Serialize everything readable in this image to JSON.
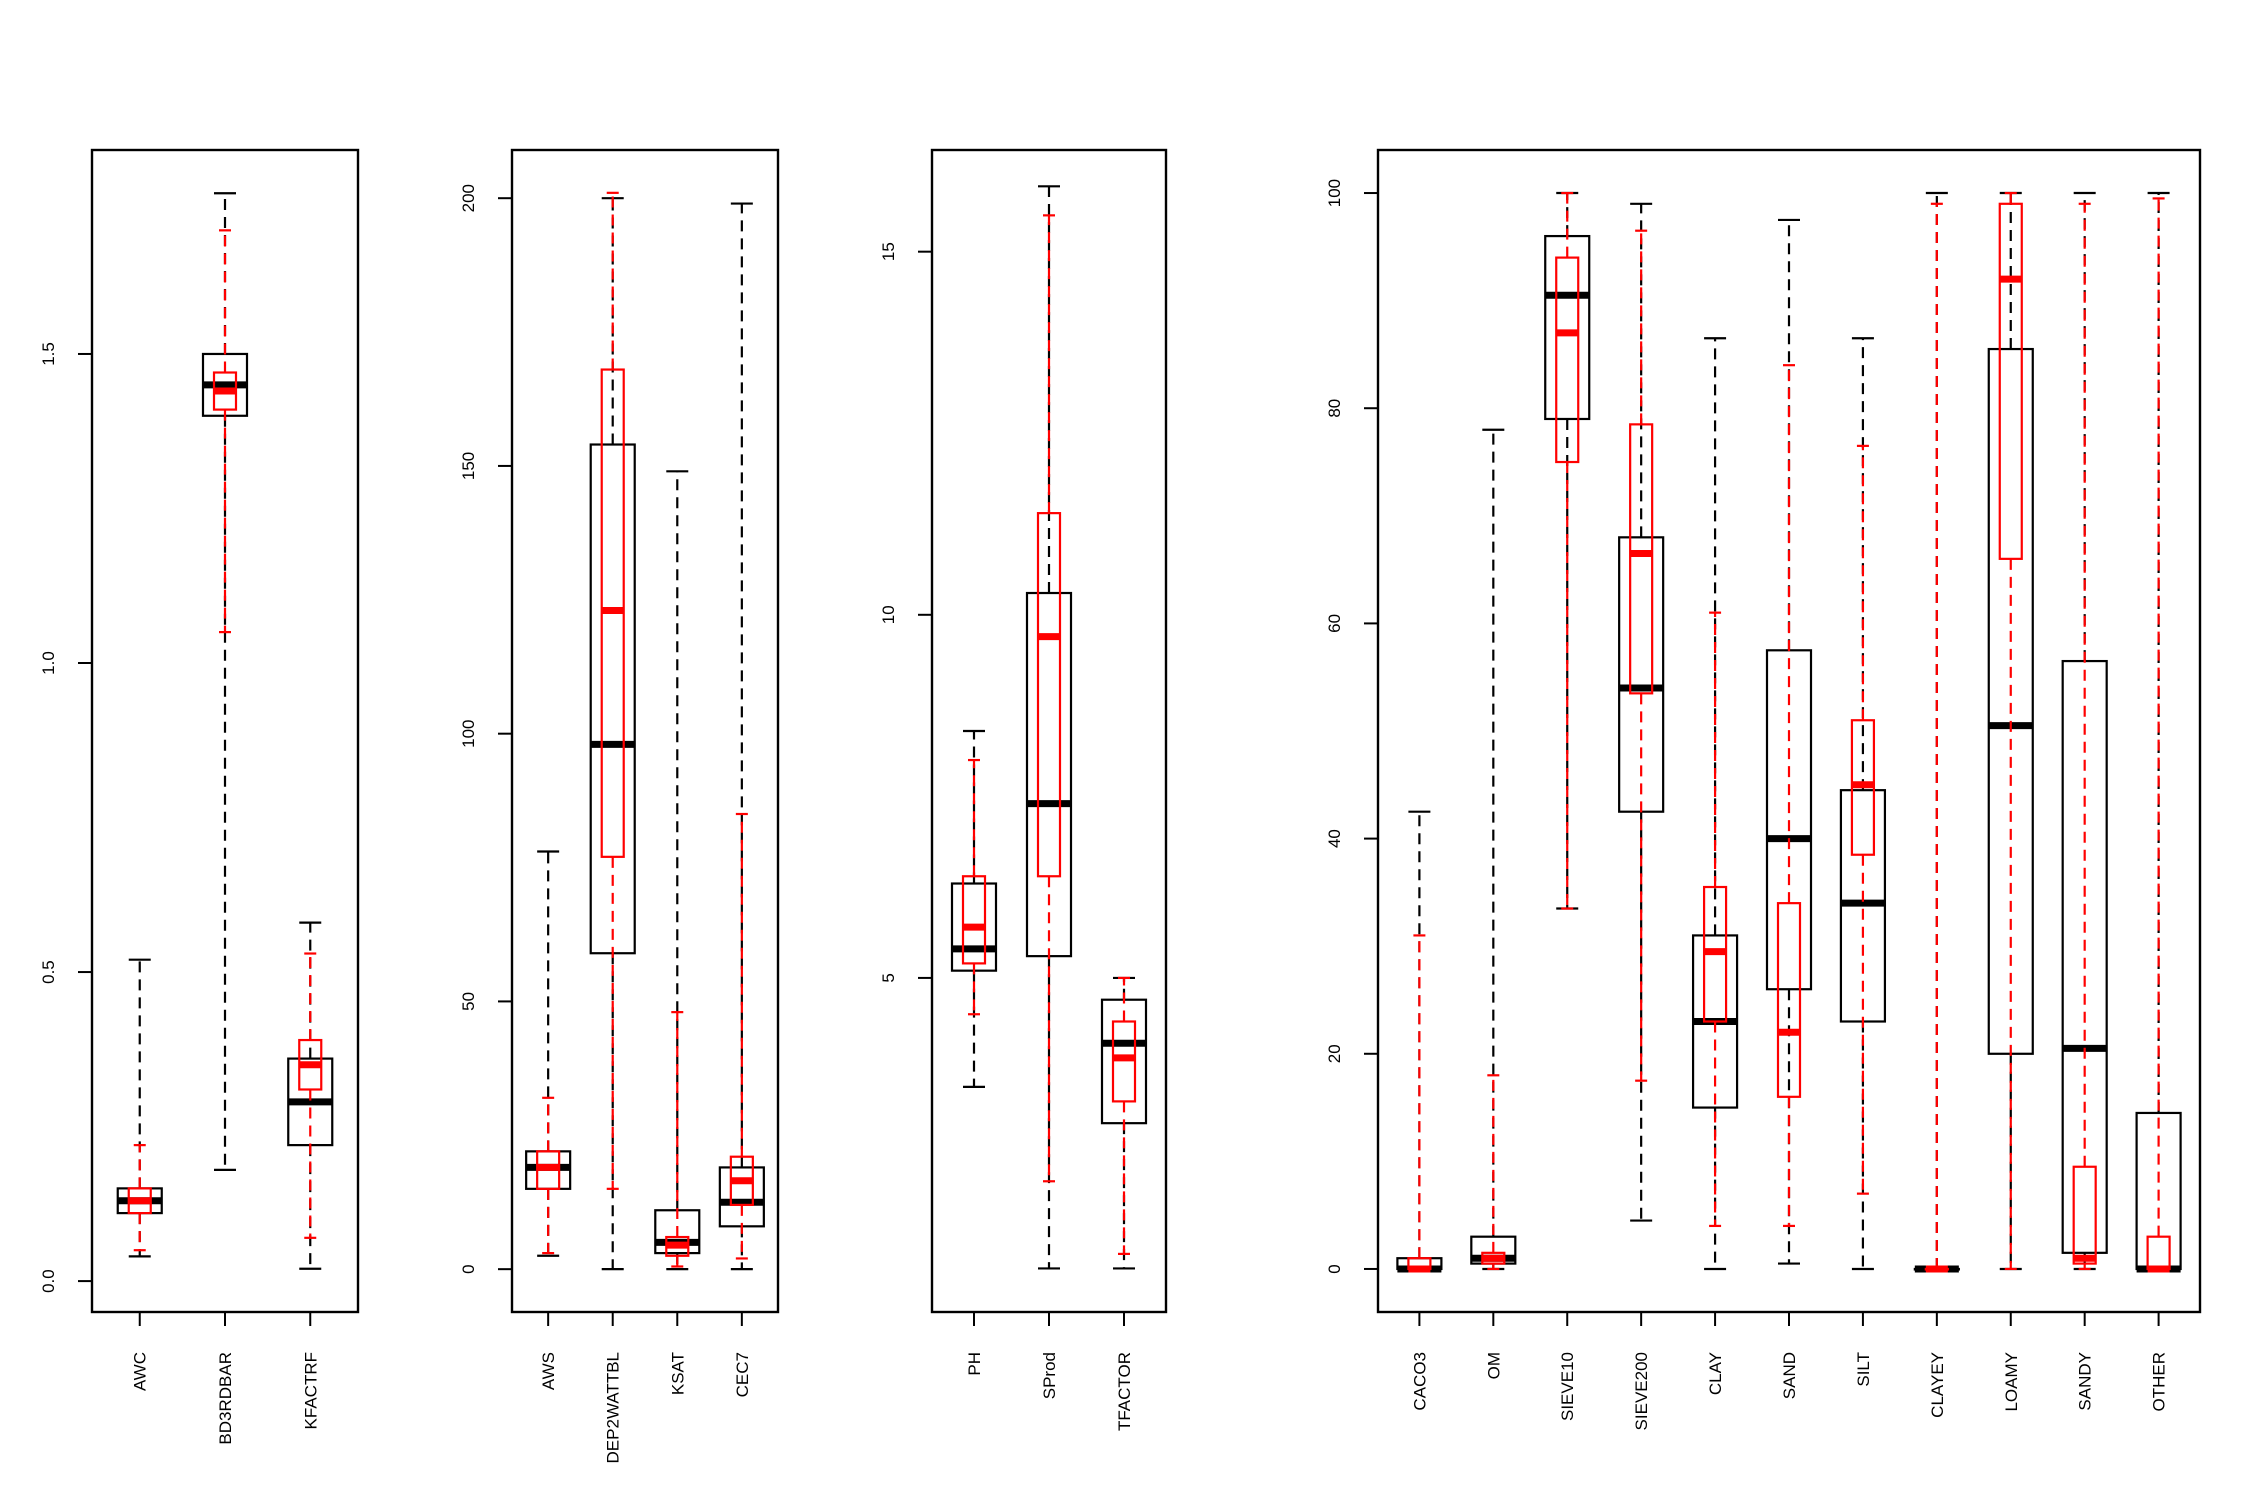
{
  "chart_data": [
    {
      "type": "boxplot",
      "ylim": [
        -0.05,
        1.83
      ],
      "yticks": [
        {
          "value": 0.0,
          "label": "0.0"
        },
        {
          "value": 0.5,
          "label": "0.5"
        },
        {
          "value": 1.0,
          "label": "1.0"
        },
        {
          "value": 1.5,
          "label": "1.5"
        }
      ],
      "categories": [
        "AWC",
        "BD3RDBAR",
        "KFACTRF"
      ],
      "series": [
        {
          "color": "#000000",
          "values": [
            {
              "min": 0.04,
              "q1": 0.11,
              "median": 0.13,
              "q3": 0.15,
              "max": 0.52
            },
            {
              "min": 0.18,
              "q1": 1.4,
              "median": 1.45,
              "q3": 1.5,
              "max": 1.76
            },
            {
              "min": 0.02,
              "q1": 0.22,
              "median": 0.29,
              "q3": 0.36,
              "max": 0.58
            }
          ]
        },
        {
          "color": "#ff0000",
          "values": [
            {
              "min": 0.05,
              "q1": 0.11,
              "median": 0.13,
              "q3": 0.15,
              "max": 0.22
            },
            {
              "min": 1.05,
              "q1": 1.41,
              "median": 1.44,
              "q3": 1.47,
              "max": 1.7
            },
            {
              "min": 0.07,
              "q1": 0.31,
              "median": 0.35,
              "q3": 0.39,
              "max": 0.53
            }
          ]
        }
      ]
    },
    {
      "type": "boxplot",
      "ylim": [
        -8,
        209
      ],
      "yticks": [
        {
          "value": 0,
          "label": "0"
        },
        {
          "value": 50,
          "label": "50"
        },
        {
          "value": 100,
          "label": "100"
        },
        {
          "value": 150,
          "label": "150"
        },
        {
          "value": 200,
          "label": "200"
        }
      ],
      "categories": [
        "AWS",
        "DEP2WATTBL",
        "KSAT",
        "CEC7"
      ],
      "series": [
        {
          "color": "#000000",
          "values": [
            {
              "min": 2.5,
              "q1": 15,
              "median": 19,
              "q3": 22,
              "max": 78
            },
            {
              "min": 0,
              "q1": 59,
              "median": 98,
              "q3": 154,
              "max": 200
            },
            {
              "min": 0,
              "q1": 3,
              "median": 5,
              "q3": 11,
              "max": 149
            },
            {
              "min": 0,
              "q1": 8,
              "median": 12.5,
              "q3": 19,
              "max": 199
            }
          ]
        },
        {
          "color": "#ff0000",
          "values": [
            {
              "min": 3,
              "q1": 15,
              "median": 19,
              "q3": 22,
              "max": 32
            },
            {
              "min": 15,
              "q1": 77,
              "median": 123,
              "q3": 168,
              "max": 201
            },
            {
              "min": 0.5,
              "q1": 2.5,
              "median": 4.5,
              "q3": 6,
              "max": 48
            },
            {
              "min": 2,
              "q1": 12,
              "median": 16.5,
              "q3": 21,
              "max": 85
            }
          ]
        }
      ]
    },
    {
      "type": "boxplot",
      "ylim": [
        0.4,
        16.4
      ],
      "yticks": [
        {
          "value": 5,
          "label": "5"
        },
        {
          "value": 10,
          "label": "10"
        },
        {
          "value": 15,
          "label": "15"
        }
      ],
      "categories": [
        "PH",
        "SProd",
        "TFACTOR"
      ],
      "series": [
        {
          "color": "#000000",
          "values": [
            {
              "min": 3.5,
              "q1": 5.1,
              "median": 5.4,
              "q3": 6.3,
              "max": 8.4
            },
            {
              "min": 1.0,
              "q1": 5.3,
              "median": 7.4,
              "q3": 10.3,
              "max": 15.9
            },
            {
              "min": 1.0,
              "q1": 3.0,
              "median": 4.1,
              "q3": 4.7,
              "max": 5.0
            }
          ]
        },
        {
          "color": "#ff0000",
          "values": [
            {
              "min": 4.5,
              "q1": 5.2,
              "median": 5.7,
              "q3": 6.4,
              "max": 8.0
            },
            {
              "min": 2.2,
              "q1": 6.4,
              "median": 9.7,
              "q3": 11.4,
              "max": 15.5
            },
            {
              "min": 1.2,
              "q1": 3.3,
              "median": 3.9,
              "q3": 4.4,
              "max": 5.0
            }
          ]
        }
      ]
    },
    {
      "type": "boxplot",
      "ylim": [
        -4,
        104
      ],
      "yticks": [
        {
          "value": 0,
          "label": "0"
        },
        {
          "value": 20,
          "label": "20"
        },
        {
          "value": 40,
          "label": "40"
        },
        {
          "value": 60,
          "label": "60"
        },
        {
          "value": 80,
          "label": "80"
        },
        {
          "value": 100,
          "label": "100"
        }
      ],
      "categories": [
        "CACO3",
        "OM",
        "SIEVE10",
        "SIEVE200",
        "CLAY",
        "SAND",
        "SILT",
        "CLAYEY",
        "LOAMY",
        "SANDY",
        "OTHER"
      ],
      "series": [
        {
          "color": "#000000",
          "values": [
            {
              "min": 0,
              "q1": 0,
              "median": 0,
              "q3": 1,
              "max": 42.5
            },
            {
              "min": 0,
              "q1": 0.5,
              "median": 1,
              "q3": 3,
              "max": 78
            },
            {
              "min": 33.5,
              "q1": 79,
              "median": 90.5,
              "q3": 96,
              "max": 100
            },
            {
              "min": 4.5,
              "q1": 42.5,
              "median": 54,
              "q3": 68,
              "max": 99
            },
            {
              "min": 0,
              "q1": 15,
              "median": 23,
              "q3": 31,
              "max": 86.5
            },
            {
              "min": 0.5,
              "q1": 26,
              "median": 40,
              "q3": 57.5,
              "max": 97.5
            },
            {
              "min": 0,
              "q1": 23,
              "median": 34,
              "q3": 44.5,
              "max": 86.5
            },
            {
              "min": 0,
              "q1": 0,
              "median": 0,
              "q3": 0,
              "max": 100
            },
            {
              "min": 0,
              "q1": 20,
              "median": 50.5,
              "q3": 85.5,
              "max": 100
            },
            {
              "min": 0,
              "q1": 1.5,
              "median": 20.5,
              "q3": 56.5,
              "max": 100
            },
            {
              "min": 0,
              "q1": 0,
              "median": 0,
              "q3": 14.5,
              "max": 100
            }
          ]
        },
        {
          "color": "#ff0000",
          "values": [
            {
              "min": 0,
              "q1": 0,
              "median": 0,
              "q3": 1,
              "max": 31
            },
            {
              "min": 0,
              "q1": 0.5,
              "median": 1,
              "q3": 1.5,
              "max": 18
            },
            {
              "min": 33.5,
              "q1": 75,
              "median": 87,
              "q3": 94,
              "max": 100
            },
            {
              "min": 17.5,
              "q1": 53.5,
              "median": 66.5,
              "q3": 78.5,
              "max": 96.5
            },
            {
              "min": 4,
              "q1": 23,
              "median": 29.5,
              "q3": 35.5,
              "max": 61
            },
            {
              "min": 4,
              "q1": 16,
              "median": 22,
              "q3": 34,
              "max": 84
            },
            {
              "min": 7,
              "q1": 38.5,
              "median": 45,
              "q3": 51,
              "max": 76.5
            },
            {
              "min": 0,
              "q1": 0,
              "median": 0,
              "q3": 0,
              "max": 99
            },
            {
              "min": 0,
              "q1": 66,
              "median": 92,
              "q3": 99,
              "max": 100
            },
            {
              "min": 0,
              "q1": 0.5,
              "median": 1,
              "q3": 9.5,
              "max": 99
            },
            {
              "min": 0,
              "q1": 0,
              "median": 0,
              "q3": 3,
              "max": 99.5
            }
          ]
        }
      ]
    }
  ]
}
